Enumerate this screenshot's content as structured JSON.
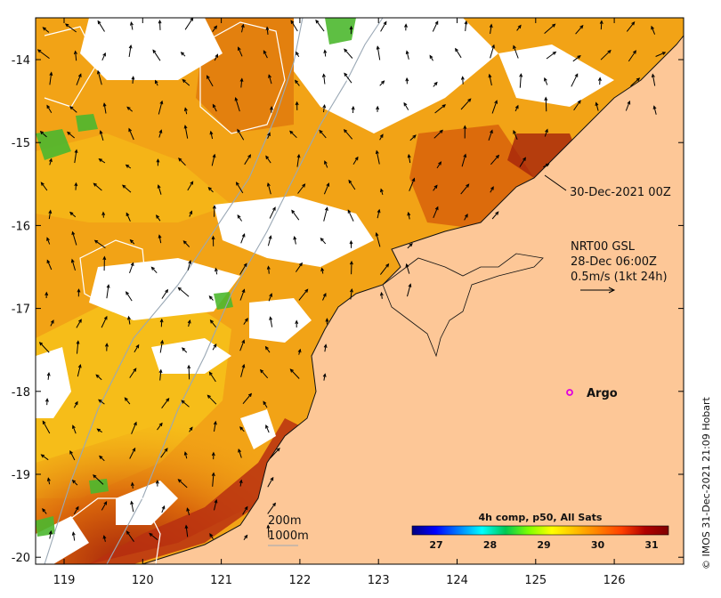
{
  "map": {
    "x_ticks": [
      "119",
      "120",
      "121",
      "122",
      "123",
      "124",
      "125",
      "126"
    ],
    "y_ticks": [
      "-14",
      "-15",
      "-16",
      "-17",
      "-18",
      "-19",
      "-20"
    ],
    "timestamp_label": "30-Dec-2021 00Z",
    "legend": {
      "line1": "NRT00 GSL",
      "line2": "28-Dec 06:00Z",
      "line3": "0.5m/s (1kt 24h)"
    },
    "argo_label": "Argo",
    "contour_labels": {
      "a": "200m",
      "b": "1000m"
    },
    "colorbar": {
      "title": "4h comp, p50, All Sats",
      "ticks": [
        "27",
        "28",
        "29",
        "30",
        "31"
      ],
      "colors": [
        "#00007f",
        "#0000ff",
        "#007fff",
        "#00ffff",
        "#00c853",
        "#7fff00",
        "#ffff00",
        "#ffbf00",
        "#ff7f00",
        "#ff3f00",
        "#b00000",
        "#7f0000"
      ]
    },
    "credit": "© IMOS 31-Dec-2021 21:09 Hobart",
    "colors": {
      "land": "#fdc797",
      "ocean_base": "#f2a316",
      "warm": "#d9650b",
      "hot": "#a5230b",
      "cloud": "#ffffff",
      "green": "#4cb82f",
      "argo": "#e000e0"
    }
  }
}
